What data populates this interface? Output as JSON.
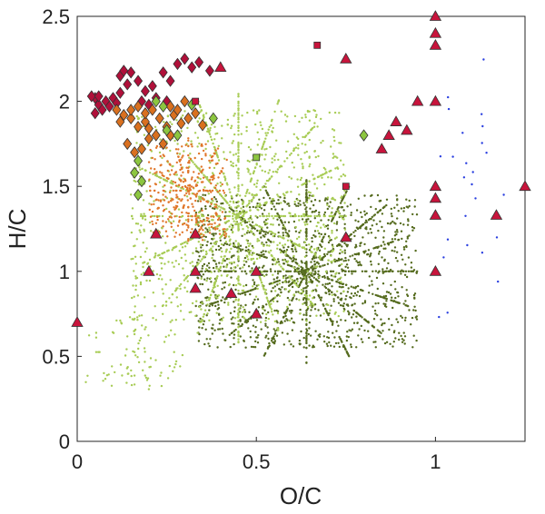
{
  "chart_data": {
    "type": "scatter",
    "title": "",
    "xlabel": "O/C",
    "ylabel": "H/C",
    "xlim": [
      0,
      1.25
    ],
    "ylim": [
      0,
      2.5
    ],
    "xticks": [
      0,
      0.5,
      1
    ],
    "xtick_labels": [
      "0",
      "0.5",
      "1"
    ],
    "yticks": [
      0,
      0.5,
      1,
      1.5,
      2,
      2.5
    ],
    "ytick_labels": [
      "0",
      "0.5",
      "1",
      "1.5",
      "2",
      "2.5"
    ],
    "grid": false,
    "legend": "none",
    "colors": {
      "dark_olive": "#556b1e",
      "light_green": "#a8cc55",
      "orange": "#e0762a",
      "blue": "#2a3fe0",
      "crimson": "#c8143c",
      "diamond_orange": "#d9701f",
      "diamond_green": "#8cc640",
      "diamond_red": "#b0103a",
      "marker_edge": "#333333"
    },
    "background_clusters": [
      {
        "color": "dark_olive",
        "count": 1900,
        "x_range": [
          0.33,
          0.95
        ],
        "y_range": [
          0.55,
          1.45
        ]
      },
      {
        "color": "light_green",
        "count": 1600,
        "x_range": [
          0.15,
          0.75
        ],
        "y_range": [
          0.7,
          1.95
        ]
      },
      {
        "color": "orange",
        "count": 380,
        "x_range": [
          0.2,
          0.42
        ],
        "y_range": [
          1.2,
          1.75
        ]
      },
      {
        "color": "light_green",
        "count": 90,
        "x_range": [
          0.02,
          0.3
        ],
        "y_range": [
          0.3,
          0.75
        ]
      },
      {
        "color": "blue",
        "count": 25,
        "x_range": [
          1.0,
          1.2
        ],
        "y_range": [
          0.7,
          2.25
        ]
      }
    ],
    "series": [
      {
        "marker": "diamond",
        "color": "diamond_red",
        "points": [
          [
            0.05,
            2.02
          ],
          [
            0.06,
            1.98
          ],
          [
            0.07,
            1.95
          ],
          [
            0.05,
            1.93
          ],
          [
            0.08,
            2.0
          ],
          [
            0.1,
            2.02
          ],
          [
            0.12,
            2.15
          ],
          [
            0.13,
            2.18
          ],
          [
            0.15,
            2.17
          ],
          [
            0.12,
            2.05
          ],
          [
            0.14,
            2.1
          ],
          [
            0.17,
            2.12
          ],
          [
            0.18,
            2.0
          ],
          [
            0.2,
            1.98
          ],
          [
            0.22,
            2.02
          ],
          [
            0.25,
            2.0
          ],
          [
            0.28,
            2.22
          ],
          [
            0.3,
            2.25
          ],
          [
            0.32,
            2.2
          ],
          [
            0.34,
            2.23
          ],
          [
            0.37,
            2.18
          ],
          [
            0.24,
            2.17
          ],
          [
            0.26,
            2.12
          ],
          [
            0.04,
            2.03
          ],
          [
            0.06,
            2.03
          ],
          [
            0.09,
            1.97
          ],
          [
            0.11,
            1.99
          ],
          [
            0.19,
            2.06
          ],
          [
            0.21,
            2.09
          ]
        ]
      },
      {
        "marker": "diamond",
        "color": "diamond_orange",
        "points": [
          [
            0.11,
            1.95
          ],
          [
            0.13,
            1.92
          ],
          [
            0.15,
            1.9
          ],
          [
            0.17,
            1.85
          ],
          [
            0.19,
            1.88
          ],
          [
            0.21,
            1.95
          ],
          [
            0.23,
            1.9
          ],
          [
            0.25,
            1.85
          ],
          [
            0.27,
            1.92
          ],
          [
            0.29,
            1.87
          ],
          [
            0.14,
            1.75
          ],
          [
            0.16,
            1.7
          ],
          [
            0.18,
            1.72
          ],
          [
            0.2,
            1.78
          ],
          [
            0.22,
            1.8
          ],
          [
            0.24,
            1.75
          ],
          [
            0.26,
            1.8
          ],
          [
            0.15,
            1.95
          ],
          [
            0.17,
            1.97
          ],
          [
            0.19,
            1.93
          ],
          [
            0.28,
            1.95
          ],
          [
            0.31,
            1.9
          ],
          [
            0.33,
            1.93
          ],
          [
            0.35,
            1.86
          ],
          [
            0.12,
            1.88
          ],
          [
            0.2,
            1.84
          ],
          [
            0.3,
            2.0
          ],
          [
            0.26,
            1.97
          ]
        ]
      },
      {
        "marker": "diamond",
        "color": "diamond_green",
        "points": [
          [
            0.17,
            1.65
          ],
          [
            0.16,
            1.58
          ],
          [
            0.18,
            1.53
          ],
          [
            0.17,
            1.45
          ],
          [
            0.22,
            2.0
          ],
          [
            0.24,
            1.97
          ],
          [
            0.28,
            1.8
          ],
          [
            0.38,
            1.9
          ],
          [
            0.8,
            1.8
          ],
          [
            0.25,
            1.83
          ],
          [
            0.32,
            1.98
          ]
        ]
      },
      {
        "marker": "triangle",
        "color": "crimson",
        "points": [
          [
            0,
            0.7
          ],
          [
            0.2,
            1.0
          ],
          [
            0.22,
            1.22
          ],
          [
            0.33,
            1.0
          ],
          [
            0.33,
            1.22
          ],
          [
            0.33,
            0.9
          ],
          [
            0.43,
            0.87
          ],
          [
            0.5,
            1.0
          ],
          [
            0.5,
            0.75
          ],
          [
            0.75,
            1.2
          ],
          [
            0.75,
            2.25
          ],
          [
            0.85,
            1.72
          ],
          [
            0.87,
            1.8
          ],
          [
            0.89,
            1.88
          ],
          [
            0.92,
            1.83
          ],
          [
            0.95,
            2.0
          ],
          [
            1.0,
            2.5
          ],
          [
            1.0,
            2.4
          ],
          [
            1.0,
            2.33
          ],
          [
            1.0,
            2.0
          ],
          [
            1.0,
            1.5
          ],
          [
            1.0,
            1.33
          ],
          [
            1.0,
            1.0
          ],
          [
            1.17,
            1.33
          ],
          [
            1.25,
            1.5
          ],
          [
            0.4,
            2.2
          ],
          [
            1.0,
            1.43
          ]
        ]
      },
      {
        "marker": "square",
        "color": "crimson",
        "points": [
          [
            0.33,
            2.0
          ],
          [
            0.67,
            2.33
          ],
          [
            0.75,
            1.5
          ]
        ]
      },
      {
        "marker": "square",
        "color": "diamond_green",
        "points": [
          [
            0.5,
            1.67
          ]
        ]
      }
    ]
  }
}
